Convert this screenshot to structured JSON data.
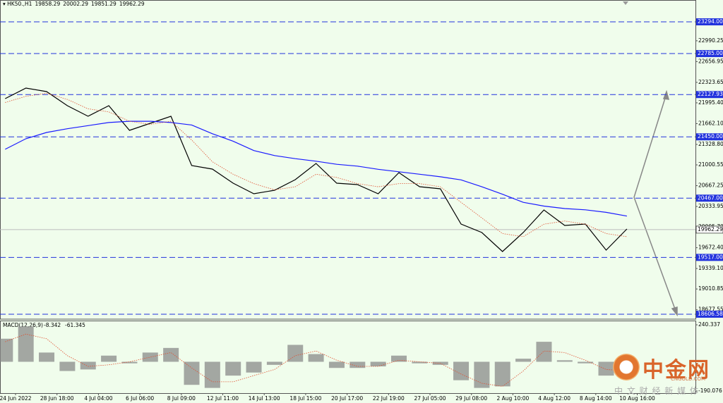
{
  "header": {
    "symbol": "HK50.,H1",
    "ohlc": [
      19858.29,
      20002.29,
      19851.29,
      19962.29
    ]
  },
  "chart_data": [
    {
      "type": "line",
      "categories": [
        "24 Jun 2022",
        "28 Jun 18:00",
        "4 Jul 04:00",
        "6 Jul 06:00",
        "8 Jul 09:00",
        "12 Jul 11:00",
        "14 Jul 13:00",
        "18 Jul 15:00",
        "20 Jul 17:00",
        "22 Jul 19:00",
        "27 Jul 05:00",
        "29 Jul 08:00",
        "2 Aug 10:00",
        "4 Aug 12:00",
        "8 Aug 14:00",
        "10 Aug 16:00"
      ],
      "xlim": [
        -0.375,
        16.405
      ],
      "x": [
        -0.25,
        0.25,
        0.75,
        1.25,
        1.75,
        2.25,
        2.75,
        3.25,
        3.75,
        4.25,
        4.75,
        5.25,
        5.75,
        6.25,
        6.75,
        7.25,
        7.75,
        8.25,
        8.75,
        9.25,
        9.75,
        10.25,
        10.75,
        11.25,
        11.75,
        12.25,
        12.75,
        13.25,
        13.75,
        14.25,
        14.75
      ],
      "ylim": [
        18527,
        23644
      ],
      "yticks": [
        22990.25,
        22656.95,
        22323.65,
        {
          "value": 21995.4,
          "label": "21995.40"
        },
        {
          "value": 21662.1,
          "label": "21662.10"
        },
        {
          "value": 21328.8,
          "label": "21328.80"
        },
        21000.55,
        20667.25,
        20333.95,
        {
          "value": 20005.7,
          "label": "20005.70"
        },
        {
          "value": 19672.4,
          "label": "19672.40"
        },
        {
          "value": 19339.1,
          "label": "19339.10"
        },
        19010.85,
        18677.55
      ],
      "levels": [
        {
          "value": 23294,
          "label": "23294.00"
        },
        {
          "value": 22785,
          "label": "22785.00"
        },
        22127.93,
        {
          "value": 21450,
          "label": "21450.00"
        },
        {
          "value": 20467,
          "label": "20467.00"
        },
        {
          "value": 19517,
          "label": "19517.00"
        },
        18606.58
      ],
      "level_color": "#2233dd",
      "current_price": 19962.29,
      "series": [
        {
          "color": "#000000",
          "values": [
            22063,
            22232,
            22176,
            21950,
            21780,
            21950,
            21554,
            21667,
            21780,
            20990,
            20933,
            20707,
            20538,
            20594,
            20764,
            21023,
            20707,
            20684,
            20538,
            20877,
            20651,
            20617,
            20052,
            19916,
            19611,
            19916,
            20278,
            20029,
            20052,
            19634,
            19973
          ]
        },
        {
          "color": "#1a1aff",
          "values": [
            21250,
            21420,
            21520,
            21580,
            21630,
            21680,
            21700,
            21700,
            21680,
            21640,
            21500,
            21380,
            21230,
            21150,
            21100,
            21060,
            21010,
            20980,
            20930,
            20890,
            20850,
            20810,
            20760,
            20650,
            20530,
            20400,
            20340,
            20300,
            20280,
            20240,
            20180
          ]
        },
        {
          "color": "#e05030",
          "style": "dotted",
          "values": [
            22000,
            22100,
            22150,
            22050,
            21900,
            21850,
            21700,
            21650,
            21700,
            21400,
            21050,
            20850,
            20700,
            20600,
            20650,
            20850,
            20800,
            20700,
            20650,
            20700,
            20700,
            20650,
            20400,
            20150,
            19900,
            19850,
            20050,
            20100,
            20050,
            19900,
            19850
          ]
        }
      ]
    },
    {
      "type": "bar",
      "title": "MACD(12,26,9)",
      "indicator_values": [
        -8.342,
        -61.345
      ],
      "xlim": [
        -0.375,
        16.405
      ],
      "x": [
        -0.25,
        0.25,
        0.75,
        1.25,
        1.75,
        2.25,
        2.75,
        3.25,
        3.75,
        4.25,
        4.75,
        5.25,
        5.75,
        6.25,
        6.75,
        7.25,
        7.75,
        8.25,
        8.75,
        9.25,
        9.75,
        10.25,
        10.75,
        11.25,
        11.75,
        12.25,
        12.75,
        13.25,
        13.75,
        14.25,
        14.75
      ],
      "ylim": [
        -204,
        268
      ],
      "yticks": [
        240.337,
        -190.076
      ],
      "series": [
        {
          "color": "#8a8a8a",
          "values": [
            150,
            230,
            60,
            -60,
            -50,
            40,
            -10,
            60,
            90,
            -150,
            -170,
            -90,
            -70,
            -20,
            110,
            50,
            -40,
            -40,
            -30,
            40,
            -10,
            -20,
            -120,
            -170,
            -160,
            20,
            130,
            10,
            -10,
            -90,
            -40
          ]
        },
        {
          "color": "#e05030",
          "style": "dotted",
          "values": [
            130,
            180,
            150,
            40,
            -30,
            -20,
            0,
            30,
            60,
            -40,
            -130,
            -130,
            -90,
            -50,
            40,
            70,
            10,
            -30,
            -30,
            10,
            0,
            -10,
            -80,
            -140,
            -160,
            -60,
            70,
            60,
            10,
            -50,
            -60
          ]
        }
      ]
    }
  ],
  "watermark": {
    "brand": "中金网",
    "site": "CNGOLD.COM",
    "slogan": "中 文 财 经 新 媒 体"
  }
}
